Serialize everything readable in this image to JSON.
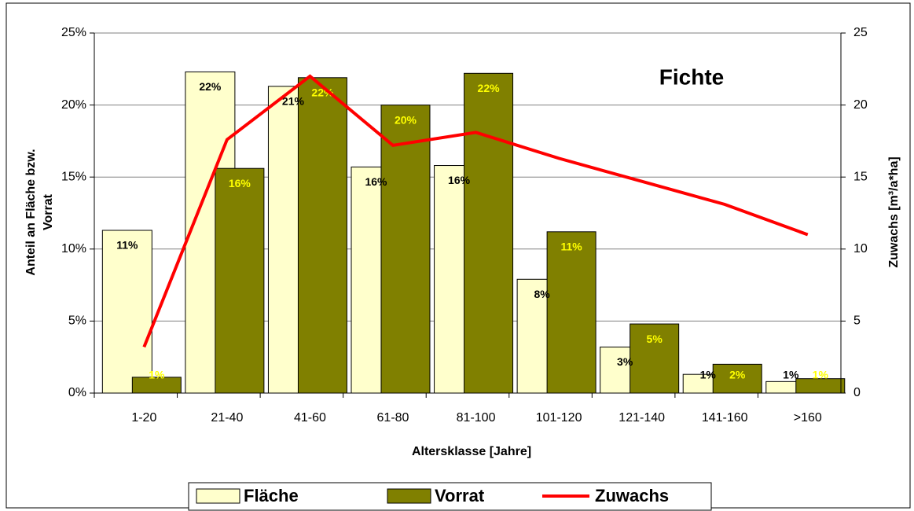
{
  "chart_data": {
    "type": "bar_line",
    "title": "Fichte",
    "xlabel": "Altersklasse [Jahre]",
    "ylabel": [
      "Anteil an Fläche bzw.",
      "Vorrat"
    ],
    "y2label": "Zuwachs [m³/a*ha]",
    "categories": [
      "1-20",
      "21-40",
      "41-60",
      "61-80",
      "81-100",
      "101-120",
      "121-140",
      "141-160",
      ">160"
    ],
    "series": [
      {
        "name": "Fläche",
        "type": "bar",
        "color": "#ffffcc",
        "label_color": "#000000",
        "values": [
          11.3,
          22.3,
          21.3,
          15.7,
          15.8,
          7.9,
          3.2,
          1.3,
          0.8
        ],
        "value_labels": [
          "11%",
          "22%",
          "21%",
          "16%",
          "16%",
          "8%",
          "3%",
          "1%",
          "1%"
        ]
      },
      {
        "name": "Vorrat",
        "type": "bar",
        "color": "#808000",
        "label_color": "#ffff00",
        "values": [
          1.1,
          15.6,
          21.9,
          20.0,
          22.2,
          11.2,
          4.8,
          2.0,
          1.0
        ],
        "value_labels": [
          "1%",
          "16%",
          "22%",
          "20%",
          "22%",
          "11%",
          "5%",
          "2%",
          "1%"
        ]
      },
      {
        "name": "Zuwachs",
        "type": "line",
        "axis": "y2",
        "color": "#ff0000",
        "values": [
          3.2,
          17.6,
          22.0,
          17.2,
          18.1,
          16.3,
          14.7,
          13.1,
          11.0
        ]
      }
    ],
    "ylim": [
      0,
      25
    ],
    "yticks": [
      {
        "value": 0,
        "label": "0%"
      },
      {
        "value": 5,
        "label": "5%"
      },
      {
        "value": 10,
        "label": "10%"
      },
      {
        "value": 15,
        "label": "15%"
      },
      {
        "value": 20,
        "label": "20%"
      },
      {
        "value": 25,
        "label": "25%"
      }
    ],
    "y2lim": [
      0,
      25
    ],
    "y2ticks": [
      0,
      5,
      10,
      15,
      20,
      25
    ],
    "grid": true,
    "legend": "bottom"
  }
}
